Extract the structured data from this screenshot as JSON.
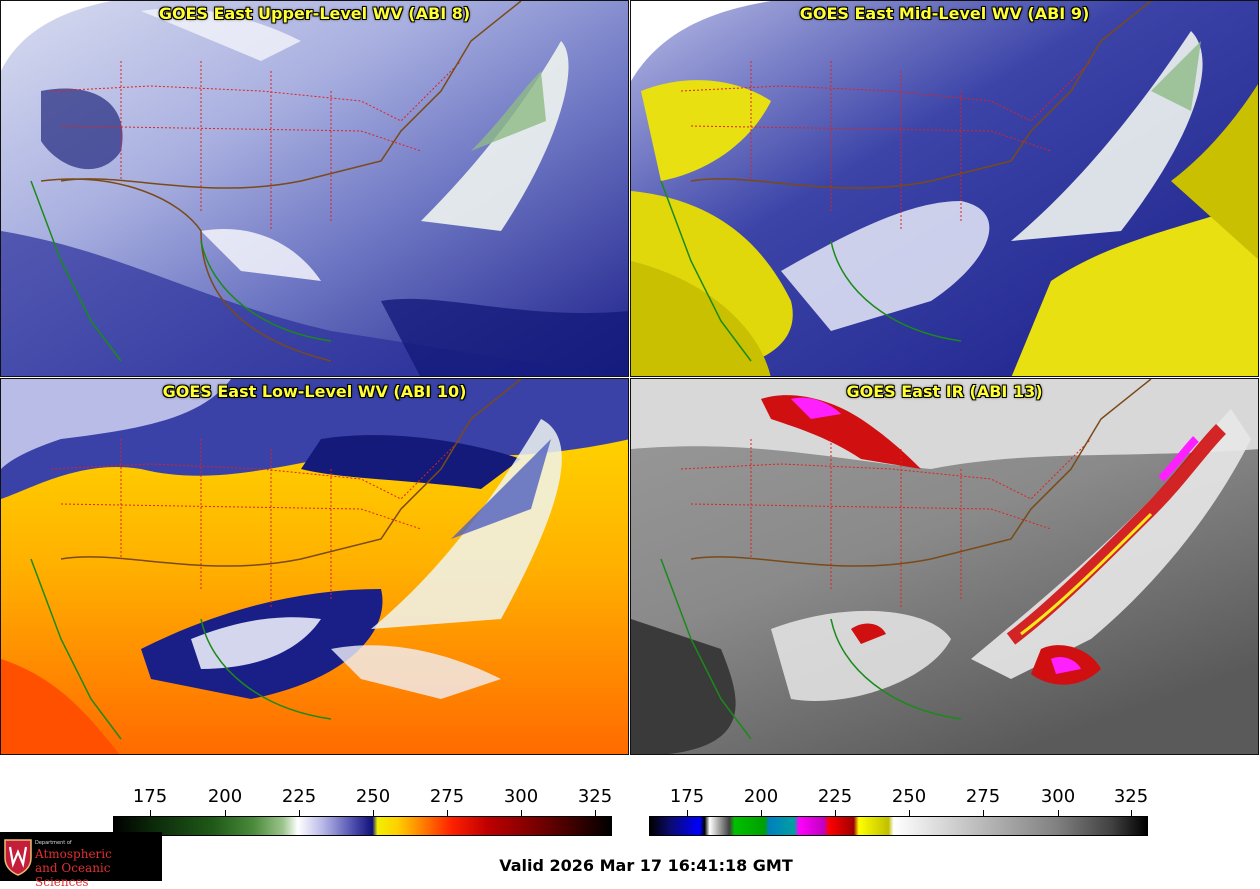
{
  "panels": [
    {
      "id": "p1",
      "title": "GOES East Upper-Level WV (ABI 8)"
    },
    {
      "id": "p2",
      "title": "GOES East Mid-Level WV (ABI 9)"
    },
    {
      "id": "p3",
      "title": "GOES East Low-Level WV (ABI 10)"
    },
    {
      "id": "p4",
      "title": "GOES East IR (ABI 13)"
    }
  ],
  "colorbars": {
    "wv": {
      "ticks": [
        "175",
        "200",
        "225",
        "250",
        "275",
        "300",
        "325"
      ]
    },
    "ir": {
      "ticks": [
        "175",
        "200",
        "225",
        "250",
        "275",
        "300",
        "325"
      ]
    }
  },
  "logo": {
    "dept": "Department of",
    "line1": "Atmospheric",
    "line2": "and Oceanic Sciences"
  },
  "valid_time": "Valid 2026 Mar 17 16:41:18 GMT"
}
